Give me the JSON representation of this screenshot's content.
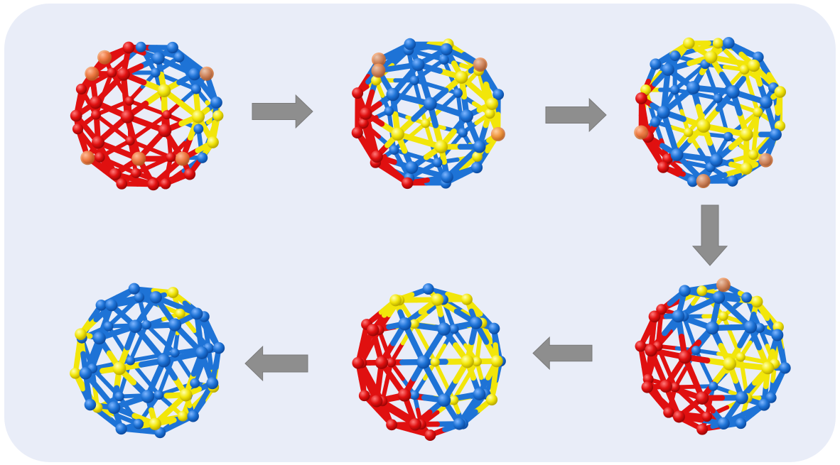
{
  "figure": {
    "background": "#e9edf8",
    "atom_colors": {
      "blue": "#1e73d6",
      "red": "#e01010",
      "yellow": "#f2e60a",
      "orange": "#ef8a4a"
    },
    "arrow_color": "#8e8e8e",
    "clusters": [
      {
        "id": "cluster-1",
        "stage": 1,
        "orange_sites": 6
      },
      {
        "id": "cluster-2",
        "stage": 2,
        "orange_sites": 4
      },
      {
        "id": "cluster-3",
        "stage": 3,
        "orange_sites": 3
      },
      {
        "id": "cluster-4",
        "stage": 4,
        "orange_sites": 1
      },
      {
        "id": "cluster-5",
        "stage": 5,
        "orange_sites": 0
      },
      {
        "id": "cluster-6",
        "stage": 6,
        "orange_sites": 0
      }
    ],
    "arrows": [
      {
        "id": "arrow-1-2",
        "direction": "right"
      },
      {
        "id": "arrow-2-3",
        "direction": "right"
      },
      {
        "id": "arrow-3-4",
        "direction": "down"
      },
      {
        "id": "arrow-4-5",
        "direction": "left"
      },
      {
        "id": "arrow-5-6",
        "direction": "left"
      }
    ]
  }
}
